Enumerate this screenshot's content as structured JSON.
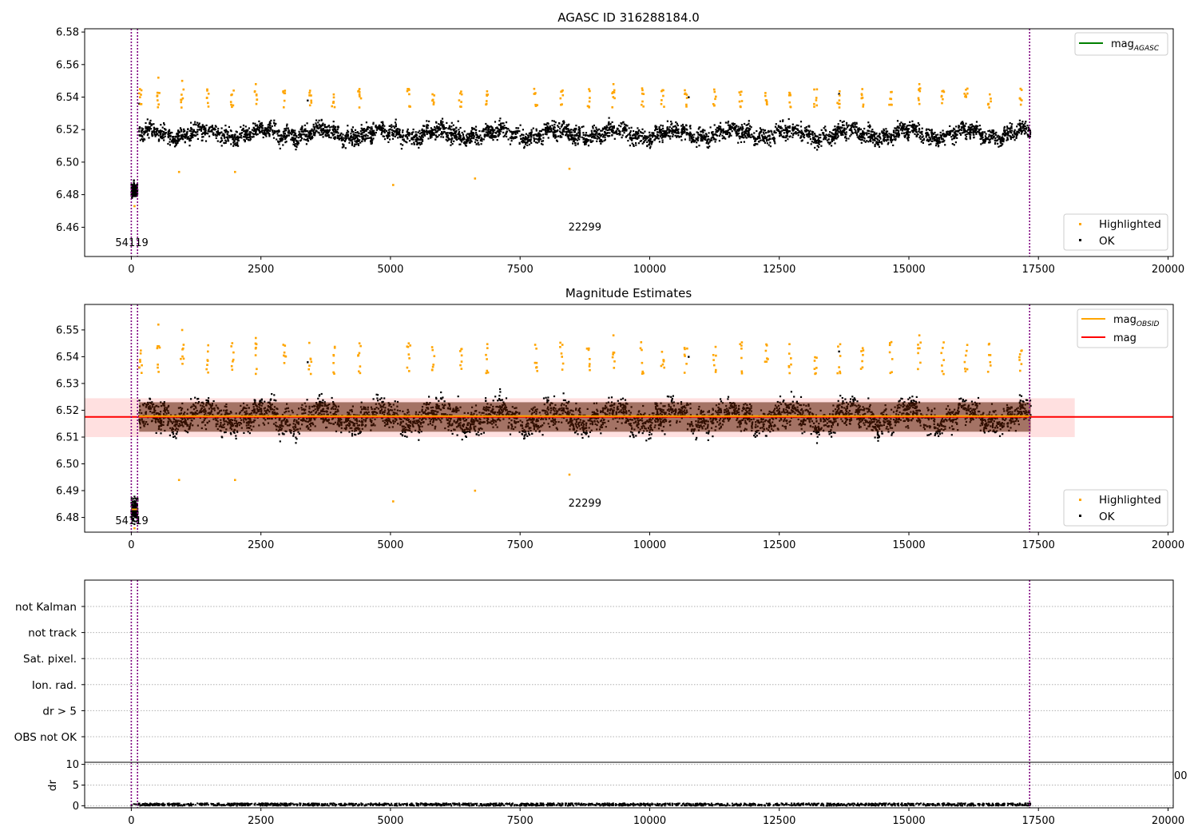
{
  "chart_data": [
    {
      "type": "scatter",
      "title": "AGASC ID 316288184.0",
      "xlabel": "",
      "ylabel": "",
      "xlim": [
        -900,
        20100
      ],
      "ylim": [
        6.442,
        6.582
      ],
      "xticks": [
        0,
        2500,
        5000,
        7500,
        10000,
        12500,
        15000,
        17500,
        20000
      ],
      "yticks": [
        6.46,
        6.48,
        6.5,
        6.52,
        6.54,
        6.56,
        6.58
      ],
      "grid": false,
      "legend_lines": {
        "placement": "top-right",
        "entries": [
          {
            "label": "mag",
            "subscript": "AGASC",
            "color": "#008000"
          }
        ]
      },
      "legend_points": {
        "placement": "bottom-right",
        "entries": [
          {
            "label": "Highlighted",
            "color": "#ffa500"
          },
          {
            "label": "OK",
            "color": "#000000"
          }
        ]
      },
      "annotations": [
        {
          "text": "54119",
          "x": 10,
          "y": 6.4485
        },
        {
          "text": "22299",
          "x": 8750,
          "y": 6.458
        }
      ],
      "vlines": [
        0,
        120,
        17330
      ],
      "vline_color": "#800080",
      "ok_band": {
        "x_start": 150,
        "x_end": 17350,
        "center": 6.5175,
        "halfwidth": 0.0055
      },
      "early_cluster": {
        "x_start": 0,
        "x_end": 120,
        "center": 6.483,
        "halfwidth": 0.0045
      },
      "highlighted_points": [
        [
          520,
          6.552
        ],
        [
          980,
          6.55
        ],
        [
          2400,
          6.548
        ],
        [
          4400,
          6.545
        ],
        [
          5350,
          6.545
        ],
        [
          9300,
          6.548
        ],
        [
          15200,
          6.548
        ],
        [
          920,
          6.494
        ],
        [
          2000,
          6.494
        ],
        [
          5050,
          6.486
        ],
        [
          6630,
          6.49
        ],
        [
          8450,
          6.496
        ],
        [
          60,
          6.473
        ]
      ],
      "outlier_ok_points": [
        [
          150,
          6.536
        ],
        [
          3400,
          6.538
        ],
        [
          10750,
          6.54
        ],
        [
          13650,
          6.542
        ]
      ]
    },
    {
      "type": "scatter",
      "title": "Magnitude Estimates",
      "xlabel": "",
      "ylabel": "",
      "xlim": [
        -900,
        20100
      ],
      "ylim": [
        6.4745,
        6.5595
      ],
      "xticks": [
        0,
        2500,
        5000,
        7500,
        10000,
        12500,
        15000,
        17500,
        20000
      ],
      "yticks": [
        6.48,
        6.49,
        6.5,
        6.51,
        6.52,
        6.53,
        6.54,
        6.55
      ],
      "grid": false,
      "legend_lines": {
        "placement": "top-right",
        "entries": [
          {
            "label": "mag",
            "subscript": "OBSID",
            "color": "#ffa500"
          },
          {
            "label": "mag",
            "subscript": "",
            "color": "#ff0000"
          }
        ]
      },
      "legend_points": {
        "placement": "bottom-right",
        "entries": [
          {
            "label": "Highlighted",
            "color": "#ffa500"
          },
          {
            "label": "OK",
            "color": "#000000"
          }
        ]
      },
      "annotations": [
        {
          "text": "54119",
          "x": 10,
          "y": 6.4775
        },
        {
          "text": "22299",
          "x": 8750,
          "y": 6.484
        }
      ],
      "vlines": [
        0,
        120,
        17330
      ],
      "vline_color": "#800080",
      "mag_line": {
        "y": 6.5175,
        "x_start": -900,
        "x_end": 20100,
        "color": "#ff0000"
      },
      "mag_band": {
        "y_low": 6.51,
        "y_high": 6.5245,
        "x_start": -900,
        "x_end": 18200,
        "color": "#ff0000"
      },
      "obsid_segments": [
        {
          "x_start": 150,
          "x_end": 17350,
          "y": 6.5178
        },
        {
          "x_start": 0,
          "x_end": 120,
          "y": 6.483
        }
      ],
      "ok_band": {
        "x_start": 150,
        "x_end": 17350,
        "center": 6.5175,
        "halfwidth": 0.0055
      },
      "early_cluster": {
        "x_start": 0,
        "x_end": 120,
        "center": 6.483,
        "halfwidth": 0.0045
      },
      "highlighted_points": [
        [
          520,
          6.552
        ],
        [
          980,
          6.55
        ],
        [
          2400,
          6.547
        ],
        [
          4400,
          6.545
        ],
        [
          5350,
          6.545
        ],
        [
          9300,
          6.548
        ],
        [
          15200,
          6.548
        ],
        [
          920,
          6.494
        ],
        [
          2000,
          6.494
        ],
        [
          5050,
          6.486
        ],
        [
          6630,
          6.49
        ],
        [
          8450,
          6.496
        ],
        [
          60,
          6.476
        ]
      ],
      "outlier_ok_points": [
        [
          150,
          6.536
        ],
        [
          3400,
          6.538
        ],
        [
          10750,
          6.54
        ],
        [
          13650,
          6.542
        ]
      ]
    },
    {
      "type": "scatter",
      "title": "",
      "xlabel": "",
      "ylabel": "",
      "xlim": [
        -900,
        20100
      ],
      "categories": [
        "not Kalman",
        "not track",
        "Sat. pixel.",
        "Ion. rad.",
        "dr > 5",
        "OBS not OK"
      ],
      "grid": true,
      "vlines": [
        0,
        120,
        17330
      ],
      "vline_color": "#800080"
    },
    {
      "type": "scatter",
      "title": "",
      "xlabel": "",
      "ylabel": "dr",
      "xlim": [
        -900,
        20100
      ],
      "ylim": [
        -0.5,
        10.5
      ],
      "xticks": [
        0,
        2500,
        5000,
        7500,
        10000,
        12500,
        15000,
        17500,
        20000
      ],
      "yticks": [
        0,
        5,
        10
      ],
      "grid": true,
      "clipped_tick_text": "00",
      "vlines": [
        0,
        120,
        17330
      ],
      "vline_color": "#800080",
      "dr_band": {
        "x_start": 0,
        "x_end": 17350,
        "low": 0.0,
        "high": 0.6
      }
    }
  ]
}
